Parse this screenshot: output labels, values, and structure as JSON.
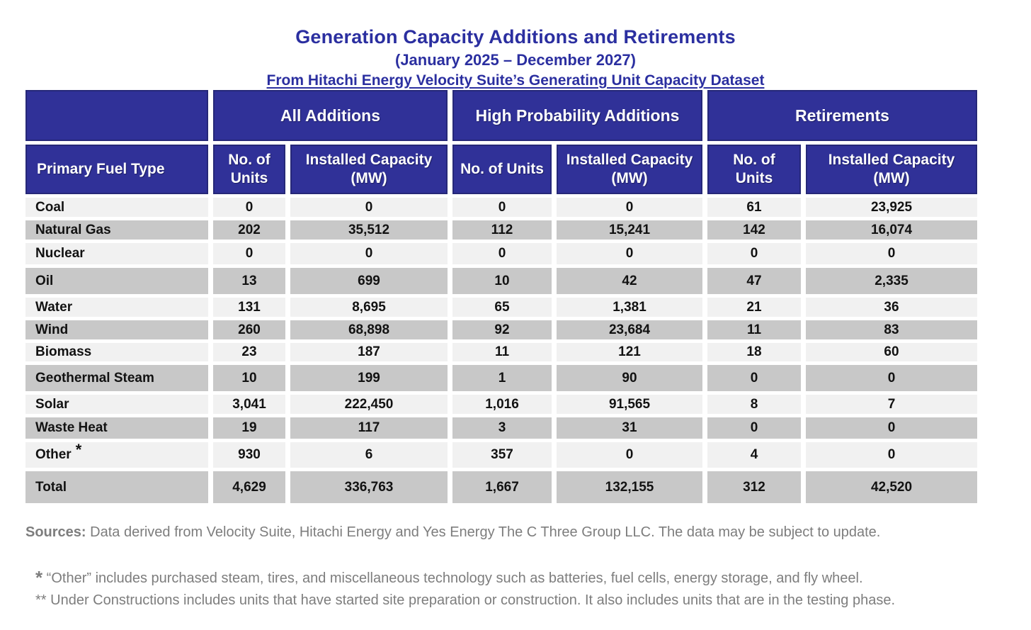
{
  "title": {
    "line1": "Generation Capacity Additions and Retirements",
    "line2": "(January 2025 – December 2027)",
    "line3": "From Hitachi Energy Velocity Suite’s Generating Unit Capacity Dataset"
  },
  "table": {
    "fuel_header": "Primary Fuel Type",
    "groups": [
      {
        "label": "All Additions"
      },
      {
        "label": "High Probability Additions"
      },
      {
        "label": "Retirements"
      }
    ],
    "sub_headers": [
      "No. of Units",
      "Installed Capacity (MW)",
      "No. of Units",
      "Installed Capacity (MW)",
      "No. of Units",
      "Installed Capacity (MW)"
    ],
    "rows": [
      {
        "fuel": "Coal",
        "values": [
          "0",
          "0",
          "0",
          "0",
          "61",
          "23,925"
        ]
      },
      {
        "fuel": "Natural Gas",
        "values": [
          "202",
          "35,512",
          "112",
          "15,241",
          "142",
          "16,074"
        ]
      },
      {
        "fuel": "Nuclear",
        "values": [
          "0",
          "0",
          "0",
          "0",
          "0",
          "0"
        ]
      },
      {
        "fuel": "Oil",
        "values": [
          "13",
          "699",
          "10",
          "42",
          "47",
          "2,335"
        ]
      },
      {
        "fuel": "Water",
        "values": [
          "131",
          "8,695",
          "65",
          "1,381",
          "21",
          "36"
        ]
      },
      {
        "fuel": "Wind",
        "values": [
          "260",
          "68,898",
          "92",
          "23,684",
          "11",
          "83"
        ]
      },
      {
        "fuel": "Biomass",
        "values": [
          "23",
          "187",
          "11",
          "121",
          "18",
          "60"
        ]
      },
      {
        "fuel": "Geothermal Steam",
        "values": [
          "10",
          "199",
          "1",
          "90",
          "0",
          "0"
        ]
      },
      {
        "fuel": "Solar",
        "values": [
          "3,041",
          "222,450",
          "1,016",
          "91,565",
          "8",
          "7"
        ]
      },
      {
        "fuel": "Waste Heat",
        "values": [
          "19",
          "117",
          "3",
          "31",
          "0",
          "0"
        ]
      },
      {
        "fuel": "Other",
        "fuel_superscript": "*",
        "values": [
          "930",
          "6",
          "357",
          "0",
          "4",
          "0"
        ]
      },
      {
        "fuel": "Total",
        "values": [
          "4,629",
          "336,763",
          "1,667",
          "132,155",
          "312",
          "42,520"
        ]
      }
    ]
  },
  "footer": {
    "sources_label": "Sources:",
    "sources_text": "  Data derived from Velocity Suite, Hitachi Energy and Yes Energy The C Three Group LLC.  The data may be subject to update.",
    "footnotes": [
      {
        "marker": "*",
        "text": " “Other” includes purchased steam, tires, and miscellaneous technology such as batteries, fuel cells, energy storage, and fly wheel."
      },
      {
        "marker": "**",
        "text": " Under Constructions includes units that have started site preparation or construction.  It also includes units that are in the testing phase."
      }
    ]
  },
  "colors": {
    "header_bg": "#303198",
    "header_border": "#262878",
    "title_blue": "#2b2fa0",
    "row_light": "#f1f1f1",
    "row_dark": "#c8c8c8",
    "footer_gray": "#7d7d7d"
  }
}
